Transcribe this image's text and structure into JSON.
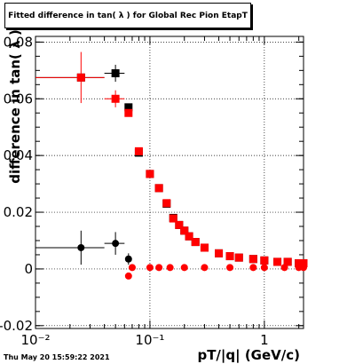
{
  "page": {
    "title": "Fitted difference in tan( λ ) for Global Rec Pion EtapT",
    "timestamp": "Thu May 20 15:59:22 2021"
  },
  "chart_data": {
    "type": "scatter",
    "title": "Fitted difference in tan( λ ) for Global Rec Pion EtapT",
    "xlabel": "pT/|q| (GeV/c)",
    "ylabel": "difference in tan( λ )",
    "xscale": "log",
    "xlim": [
      0.01,
      2.2
    ],
    "ylim": [
      -0.021,
      0.082
    ],
    "grid": true,
    "xticks": [
      {
        "value": 0.01,
        "label": "10⁻²"
      },
      {
        "value": 0.1,
        "label": "10⁻¹"
      },
      {
        "value": 1,
        "label": "1"
      }
    ],
    "yticks": [
      {
        "value": -0.02,
        "label": "-0.02"
      },
      {
        "value": 0,
        "label": "0"
      },
      {
        "value": 0.02,
        "label": "0.02"
      },
      {
        "value": 0.04,
        "label": "0.04"
      },
      {
        "value": 0.06,
        "label": "0.06"
      },
      {
        "value": 0.08,
        "label": "0.08"
      }
    ],
    "series": [
      {
        "color": "#000000",
        "marker": "square",
        "x": [
          0.025,
          0.05,
          0.065,
          0.08,
          0.1,
          0.12,
          0.14,
          0.16,
          0.18,
          0.2,
          0.22,
          0.25,
          0.3,
          0.4,
          0.5,
          0.6,
          0.8,
          1.0,
          1.3,
          1.6,
          2.0,
          2.2
        ],
        "xerr": [
          0.015,
          0.01,
          0,
          0,
          0,
          0,
          0,
          0,
          0,
          0,
          0,
          0,
          0,
          0,
          0,
          0,
          0,
          0,
          0,
          0,
          0,
          0
        ],
        "y": [
          0.0675,
          0.069,
          0.057,
          0.041,
          0.0335,
          0.0285,
          0.023,
          0.018,
          0.0155,
          0.0135,
          0.0115,
          0.0095,
          0.0075,
          0.0055,
          0.0045,
          0.004,
          0.0035,
          0.003,
          0.0025,
          0.0025,
          0.002,
          0.002
        ],
        "yerr": [
          0,
          0.003,
          0,
          0,
          0,
          0,
          0,
          0,
          0,
          0,
          0,
          0,
          0,
          0,
          0,
          0,
          0,
          0,
          0,
          0,
          0,
          0
        ]
      },
      {
        "color": "#ff0000",
        "marker": "square",
        "x": [
          0.025,
          0.05,
          0.065,
          0.08,
          0.1,
          0.12,
          0.14,
          0.16,
          0.18,
          0.2,
          0.22,
          0.25,
          0.3,
          0.4,
          0.5,
          0.6,
          0.8,
          1.0,
          1.3,
          1.6,
          2.0,
          2.2
        ],
        "xerr": [
          0.015,
          0.01,
          0,
          0,
          0,
          0,
          0,
          0,
          0,
          0,
          0,
          0,
          0,
          0,
          0,
          0,
          0,
          0,
          0,
          0,
          0,
          0
        ],
        "y": [
          0.0675,
          0.06,
          0.055,
          0.0415,
          0.0335,
          0.0285,
          0.0232,
          0.0178,
          0.0155,
          0.0135,
          0.0115,
          0.0095,
          0.0075,
          0.0055,
          0.0045,
          0.004,
          0.0035,
          0.003,
          0.0025,
          0.0025,
          0.002,
          0.002
        ],
        "yerr": [
          0.009,
          0.003,
          0,
          0,
          0,
          0,
          0,
          0,
          0,
          0,
          0,
          0,
          0,
          0,
          0,
          0,
          0,
          0,
          0,
          0,
          0,
          0
        ]
      },
      {
        "color": "#000000",
        "marker": "circle",
        "x": [
          0.025,
          0.05,
          0.065
        ],
        "xerr": [
          0.015,
          0.01,
          0
        ],
        "y": [
          0.0075,
          0.009,
          0.0035
        ],
        "yerr": [
          0.006,
          0.004,
          0.002
        ]
      },
      {
        "color": "#ff0000",
        "marker": "circle",
        "x": [
          0.065,
          0.07,
          0.1,
          0.12,
          0.15,
          0.2,
          0.3,
          0.5,
          0.8,
          1.0,
          1.5,
          2.0,
          2.2
        ],
        "xerr": [
          0,
          0,
          0,
          0,
          0,
          0,
          0,
          0,
          0,
          0,
          0,
          0,
          0
        ],
        "y": [
          -0.0025,
          0.0005,
          0.0005,
          0.0005,
          0.0005,
          0.0005,
          0.0005,
          0.0005,
          0.0005,
          0.0005,
          0.0005,
          0.0005,
          0.0005
        ],
        "yerr": [
          0,
          0,
          0,
          0,
          0,
          0,
          0,
          0,
          0,
          0,
          0,
          0,
          0
        ]
      }
    ]
  }
}
